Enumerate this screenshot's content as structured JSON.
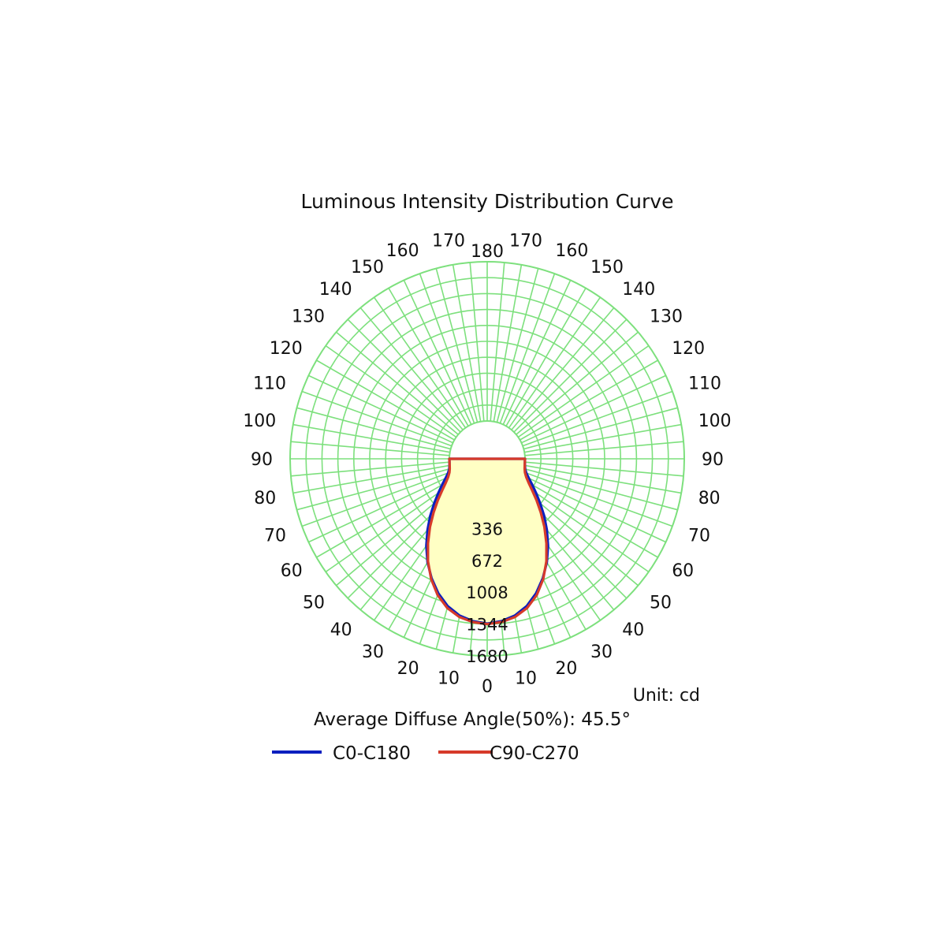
{
  "chart_data": {
    "type": "polar",
    "title": "Luminous Intensity Distribution Curve",
    "unit_label": "Unit: cd",
    "note": "Average Diffuse Angle(50%): 45.5°",
    "radial_max": 1680,
    "radial_ticks": [
      336,
      672,
      1008,
      1344,
      1680
    ],
    "angle_ticks": [
      0,
      10,
      20,
      30,
      40,
      50,
      60,
      70,
      80,
      90,
      100,
      110,
      120,
      130,
      140,
      150,
      160,
      170,
      180
    ],
    "grid": true,
    "legend_position": "bottom",
    "colors": {
      "grid": "#7de07d",
      "fill": "#ffffc4",
      "c0": "#0b1fbf",
      "c90": "#d63a2a"
    },
    "series": [
      {
        "name": "C0-C180",
        "color": "#0b1fbf",
        "angles": [
          0,
          5,
          10,
          15,
          20,
          25,
          30,
          35,
          40,
          45,
          50,
          55,
          60,
          65,
          70,
          75,
          80,
          85,
          90
        ],
        "values": [
          1340,
          1320,
          1280,
          1210,
          1110,
          990,
          860,
          720,
          580,
          450,
          330,
          230,
          150,
          85,
          40,
          15,
          5,
          0,
          0
        ]
      },
      {
        "name": "C90-C270",
        "color": "#d63a2a",
        "angles": [
          0,
          5,
          10,
          15,
          20,
          25,
          30,
          35,
          40,
          45,
          50,
          55,
          60,
          65,
          70,
          75,
          80,
          85,
          90
        ],
        "values": [
          1345,
          1330,
          1295,
          1230,
          1130,
          1000,
          850,
          690,
          540,
          400,
          280,
          180,
          105,
          55,
          25,
          10,
          3,
          0,
          0
        ]
      }
    ]
  }
}
